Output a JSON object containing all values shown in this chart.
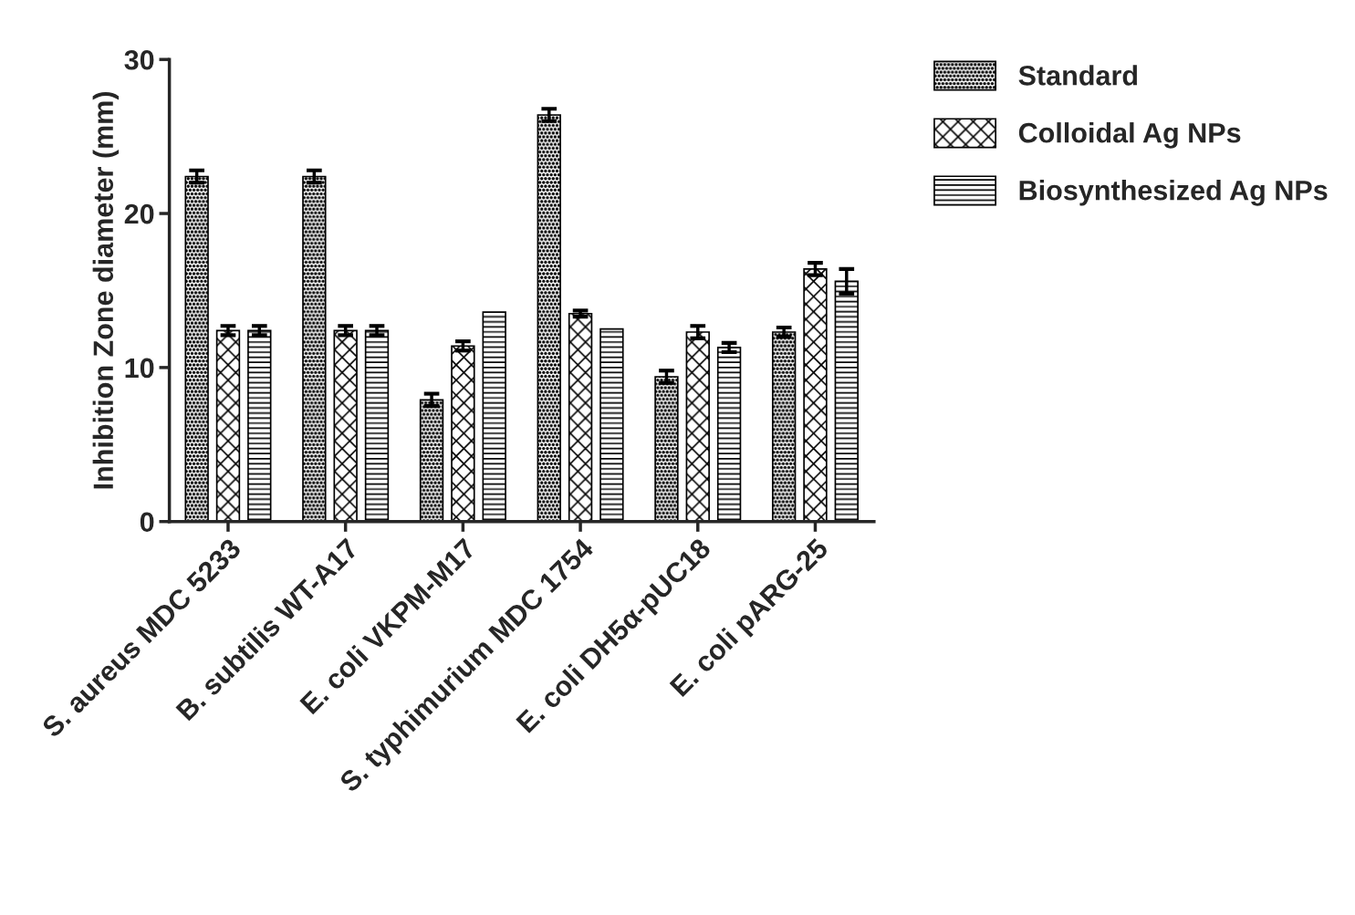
{
  "chart_data": {
    "type": "bar",
    "ylabel": "Inhibition Zone diameter (mm)",
    "categories": [
      "S. aureus MDC 5233",
      "B. subtilis WT-A17",
      "E. coli VKPM-M17",
      "S. typhimurium MDC 1754",
      "E. coli DH5α-pUC18",
      "E. coli pARG-25"
    ],
    "series": [
      {
        "name": "Standard",
        "color": "#000000",
        "values": [
          22.4,
          22.4,
          7.9,
          26.4,
          9.4,
          12.3
        ],
        "errors": [
          0.4,
          0.4,
          0.4,
          0.4,
          0.4,
          0.3
        ]
      },
      {
        "name": "Colloidal Ag NPs",
        "color": "#000000",
        "values": [
          12.4,
          12.4,
          11.4,
          13.5,
          12.3,
          16.4
        ],
        "errors": [
          0.3,
          0.3,
          0.3,
          0.2,
          0.4,
          0.4
        ]
      },
      {
        "name": "Biosynthesized Ag NPs",
        "color": "#000000",
        "values": [
          12.4,
          12.4,
          13.6,
          12.5,
          11.3,
          15.6
        ],
        "errors": [
          0.3,
          0.3,
          null,
          null,
          0.3,
          0.8
        ]
      }
    ],
    "ylim": [
      0,
      30
    ],
    "yticks": [
      0,
      10,
      20,
      30
    ],
    "grid": false,
    "legend": "top right"
  }
}
